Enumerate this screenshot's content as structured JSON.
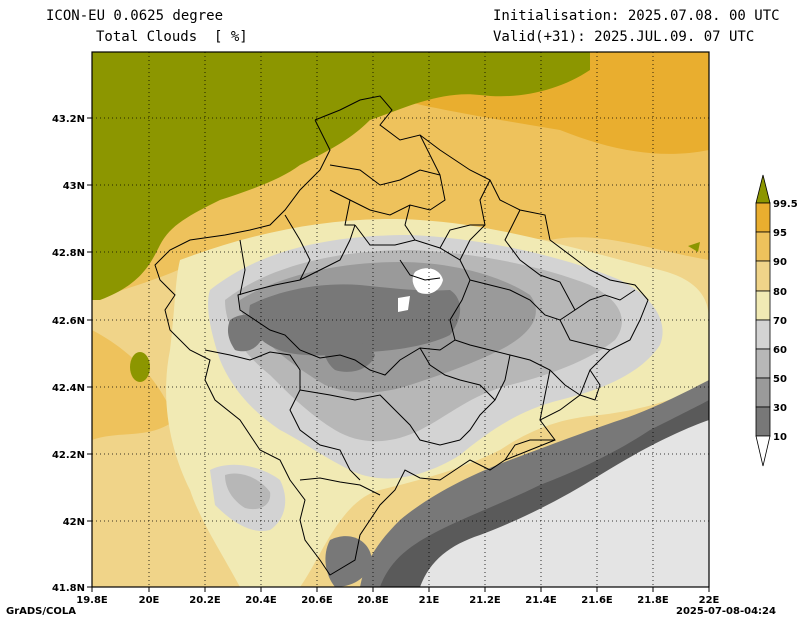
{
  "header": {
    "model": "ICON-EU 0.0625 degree",
    "field": "Total Clouds  [ %]",
    "init": "Initialisation: 2025.07.08. 00 UTC",
    "valid": "Valid(+31): 2025.JUL.09. 07 UTC"
  },
  "footer": {
    "credit": "GrADS/COLA",
    "timestamp": "2025-07-08-04:24"
  },
  "axes": {
    "x_ticks": [
      "19.8E",
      "20E",
      "20.2E",
      "20.4E",
      "20.6E",
      "20.8E",
      "21E",
      "21.2E",
      "21.4E",
      "21.6E",
      "21.8E",
      "22E"
    ],
    "y_ticks": [
      "43.2N",
      "43N",
      "42.8N",
      "42.6N",
      "42.4N",
      "42.2N",
      "42N",
      "41.8N"
    ]
  },
  "legend": {
    "labels": [
      "99.5",
      "95",
      "90",
      "80",
      "70",
      "60",
      "50",
      "30",
      "10"
    ],
    "colors": {
      "above_99_5": "#8c9600",
      "95_99_5": "#e9ae2f",
      "90_95": "#eec25c",
      "80_90": "#f0d489",
      "70_80": "#f1eab4",
      "60_70": "#d3d3d3",
      "50_60": "#b7b7b7",
      "30_50": "#9a9a9a",
      "10_30": "#787878",
      "below_10": "#5a5a5a"
    }
  }
}
